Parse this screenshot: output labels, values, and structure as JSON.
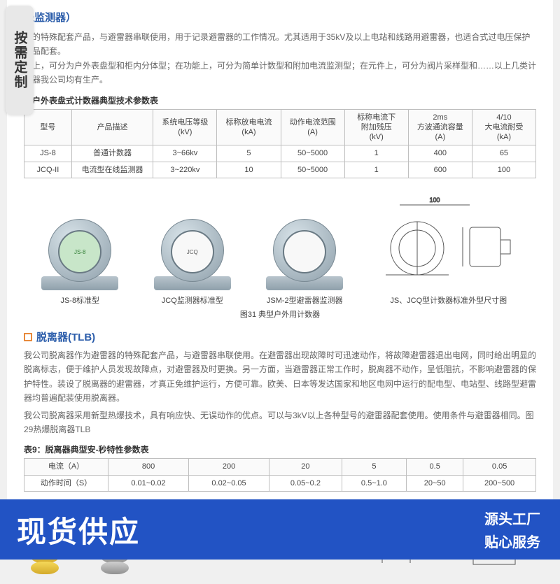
{
  "badge_left": "按需定制",
  "fragment_title": "线监测器）",
  "counter_desc": "器的特殊配套产品，与避雷器串联使用，用于记录避雷器的工作情况。尤其适用于35kV及以上电站和线路用避雷器，也适合式过电压保护产品配套。\n构上，可分为户外表盘型和柜内分体型；在功能上，可分为简单计数型和附加电流监测型；在元件上，可分为阀片采样型和……以上几类计数器我公司均有生产。",
  "table1_caption": "用户外表盘式计数器典型技术参数表",
  "table1": {
    "columns": [
      "型号",
      "产品描述",
      "系统电压等级\n(kV)",
      "标称放电电流\n(kA)",
      "动作电流范围\n(A)",
      "标称电流下\n附加残压\n(kV)",
      "2ms\n方波通流容量\n(A)",
      "4/10\n大电流耐受\n(kA)"
    ],
    "rows": [
      [
        "JS-8",
        "普通计数器",
        "3~66kv",
        "5",
        "50~5000",
        "1",
        "400",
        "65"
      ],
      [
        "JCQ-II",
        "电流型在线监测器",
        "3~220kv",
        "10",
        "50~5000",
        "1",
        "600",
        "100"
      ]
    ],
    "col_widths": [
      "64px",
      "110px",
      "86px",
      "86px",
      "86px",
      "86px",
      "86px",
      "86px"
    ]
  },
  "products": [
    {
      "label": "JS-8标准型",
      "variant": "green",
      "dial": "JS-8"
    },
    {
      "label": "JCQ监测器标准型",
      "variant": "white",
      "dial": "JCQ"
    },
    {
      "label": "JSM-2型避雷器监测器",
      "variant": "white2",
      "dial": ""
    }
  ],
  "diagram_label": "JS、JCQ型计数器标准外型尺寸图",
  "figure31": "图31 典型户外用计数器",
  "tlb_title": "脱离器(TLB)",
  "tlb_desc": "我公司脱离器作为避雷器的特殊配套产品，与避雷器串联使用。在避雷器出现故障时可迅速动作，将故障避雷器退出电网，同时给出明显的脱离标志，便于维护人员发现故障点，对避雷器及时更换。另一方面，当避雷器正常工作时，脱离器不动作，呈低阻抗，不影响避雷器的保护特性。装设了脱离器的避雷器，才真正免维护运行，方便可靠。欧美、日本等发达国家和地区电网中运行的配电型、电站型、线路型避雷器均普遍配装使用脱离器。\n我公司脱离器采用新型热爆技术，具有响应快、无误动作的优点。可以与3kV以上各种型号的避雷器配套使用。使用条件与避雷器相同。图29热爆脱离器TLB",
  "table2_caption": "表9：脱离器典型安-秒特性参数表",
  "table2": {
    "columns": [
      "电流（A）",
      "800",
      "200",
      "20",
      "5",
      "0.5",
      "0.05"
    ],
    "rows": [
      [
        "动作时间（S）",
        "0.01~0.02",
        "0.02~0.05",
        "0.05~0.2",
        "0.5~1.0",
        "20~50",
        "200~500"
      ]
    ]
  },
  "footer": {
    "main": "现货供应",
    "r1": "源头工厂",
    "r2": "贴心服务"
  },
  "colors": {
    "brand_blue": "#2a5caa",
    "footer_blue": "#2253c4",
    "orange": "#e88a3c"
  }
}
